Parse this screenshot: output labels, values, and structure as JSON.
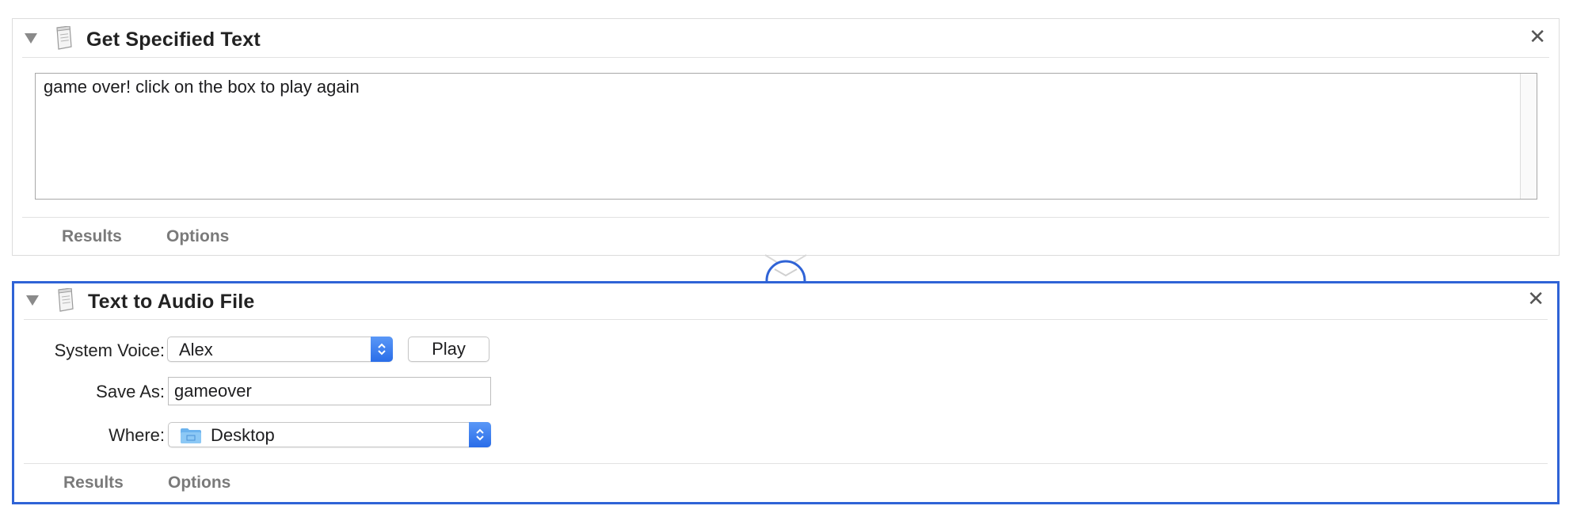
{
  "colors": {
    "selection_border": "#2f63d6",
    "popup_accent": "#3a7bf0",
    "folder_blue": "#6cb3ee"
  },
  "actions": [
    {
      "title": "Get Specified Text",
      "icon": "document-icon",
      "text_content": "game over! click on the box to play again",
      "footer": {
        "results_label": "Results",
        "options_label": "Options"
      }
    },
    {
      "title": "Text to Audio File",
      "icon": "document-icon",
      "system_voice_label": "System Voice:",
      "system_voice_value": "Alex",
      "play_label": "Play",
      "save_as_label": "Save As:",
      "save_as_value": "gameover",
      "where_label": "Where:",
      "where_value": "Desktop",
      "footer": {
        "results_label": "Results",
        "options_label": "Options"
      }
    }
  ],
  "close_symbol": "✕"
}
